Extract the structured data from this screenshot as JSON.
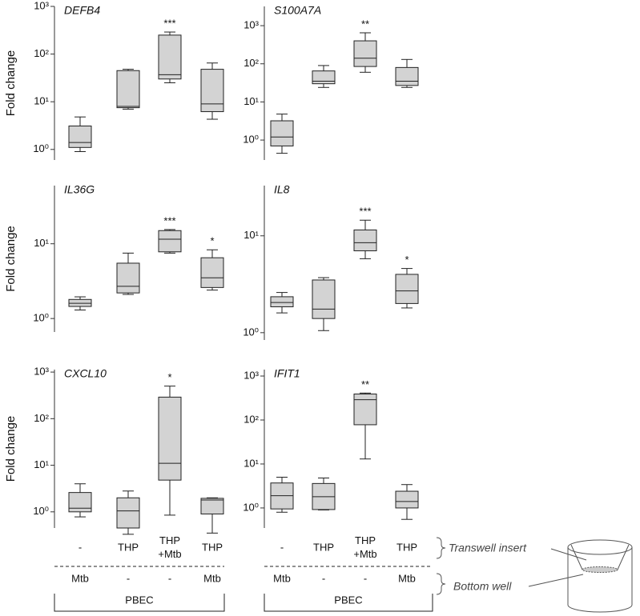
{
  "chart_data": [
    {
      "type": "box",
      "title": "DEFB4",
      "y_label": "Fold change",
      "log_scale": true,
      "color": "#d3d3d3",
      "ylim": [
        0.6,
        1000
      ],
      "yticks": [
        {
          "value": 1,
          "label": "10⁰"
        },
        {
          "value": 10,
          "label": "10¹"
        },
        {
          "value": 100,
          "label": "10²"
        },
        {
          "value": 1000,
          "label": "10³"
        }
      ],
      "whislo": [
        0.9,
        7,
        25,
        4.3
      ],
      "q1": [
        1.1,
        7.5,
        30,
        6.2
      ],
      "median": [
        1.4,
        8,
        37,
        9
      ],
      "q3": [
        3.1,
        45,
        250,
        48
      ],
      "whishi": [
        4.8,
        48,
        290,
        65
      ],
      "annotations": [
        null,
        null,
        "***",
        null
      ]
    },
    {
      "type": "box",
      "title": "S100A7A",
      "log_scale": true,
      "color": "#d3d3d3",
      "ylim": [
        0.3,
        3200
      ],
      "yticks": [
        {
          "value": 1,
          "label": "10⁰"
        },
        {
          "value": 10,
          "label": "10¹"
        },
        {
          "value": 100,
          "label": "10²"
        },
        {
          "value": 1000,
          "label": "10³"
        }
      ],
      "whislo": [
        0.45,
        24,
        60,
        24
      ],
      "q1": [
        0.7,
        30,
        85,
        27
      ],
      "median": [
        1.2,
        35,
        140,
        35
      ],
      "q3": [
        3.2,
        65,
        400,
        80
      ],
      "whishi": [
        4.8,
        90,
        650,
        130
      ],
      "annotations": [
        null,
        null,
        "**",
        null
      ]
    },
    {
      "type": "box",
      "title": "IL36G",
      "y_label": "Fold change",
      "log_scale": true,
      "color": "#d3d3d3",
      "ylim": [
        0.66,
        60
      ],
      "yticks": [
        {
          "value": 1,
          "label": "10⁰"
        },
        {
          "value": 10,
          "label": "10¹"
        }
      ],
      "whislo": [
        1.3,
        2.1,
        7.5,
        2.4
      ],
      "q1": [
        1.45,
        2.2,
        7.8,
        2.6
      ],
      "median": [
        1.6,
        2.7,
        11.5,
        3.5
      ],
      "q3": [
        1.8,
        5.5,
        15,
        6.5
      ],
      "whishi": [
        1.95,
        7.5,
        15.5,
        8.3
      ],
      "annotations": [
        null,
        null,
        "***",
        "*"
      ]
    },
    {
      "type": "box",
      "title": "IL8",
      "log_scale": true,
      "color": "#d3d3d3",
      "ylim": [
        0.84,
        33
      ],
      "yticks": [
        {
          "value": 1,
          "label": "10⁰"
        },
        {
          "value": 10,
          "label": "10¹"
        }
      ],
      "whislo": [
        1.6,
        1.05,
        5.8,
        1.8
      ],
      "q1": [
        1.85,
        1.4,
        7.0,
        2.0
      ],
      "median": [
        2.05,
        1.75,
        8.5,
        2.7
      ],
      "q3": [
        2.35,
        3.5,
        11.5,
        4.0
      ],
      "whishi": [
        2.6,
        3.7,
        14.5,
        4.6
      ],
      "annotations": [
        null,
        null,
        "***",
        "*"
      ]
    },
    {
      "type": "box",
      "title": "CXCL10",
      "y_label": "Fold change",
      "log_scale": true,
      "color": "#d3d3d3",
      "ylim": [
        0.45,
        1130
      ],
      "yticks": [
        {
          "value": 1,
          "label": "10⁰"
        },
        {
          "value": 10,
          "label": "10¹"
        },
        {
          "value": 100,
          "label": "10²"
        },
        {
          "value": 1000,
          "label": "10³"
        }
      ],
      "whislo": [
        0.78,
        0.33,
        0.85,
        0.35
      ],
      "q1": [
        1.0,
        0.45,
        4.8,
        0.9
      ],
      "median": [
        1.2,
        1.05,
        11,
        1.8
      ],
      "q3": [
        2.6,
        2.0,
        290,
        1.95
      ],
      "whishi": [
        4.0,
        2.8,
        500,
        2.0
      ],
      "annotations": [
        null,
        null,
        "*",
        null
      ]
    },
    {
      "type": "box",
      "title": "IFIT1",
      "log_scale": true,
      "color": "#d3d3d3",
      "ylim": [
        0.35,
        1400
      ],
      "yticks": [
        {
          "value": 1,
          "label": "10⁰"
        },
        {
          "value": 10,
          "label": "10¹"
        },
        {
          "value": 100,
          "label": "10²"
        },
        {
          "value": 1000,
          "label": "10³"
        }
      ],
      "whislo": [
        0.8,
        0.9,
        13,
        0.55
      ],
      "q1": [
        0.95,
        0.92,
        78,
        1.0
      ],
      "median": [
        1.9,
        1.8,
        290,
        1.4
      ],
      "q3": [
        3.7,
        3.6,
        390,
        2.4
      ],
      "whishi": [
        5.0,
        4.8,
        410,
        3.4
      ],
      "annotations": [
        null,
        null,
        "**",
        null
      ]
    }
  ],
  "conditions": {
    "insert": [
      "-",
      "THP",
      "THP +Mtb",
      "THP"
    ],
    "bottom": [
      "Mtb",
      "-",
      "-",
      "Mtb"
    ],
    "group": "PBEC"
  },
  "legend": {
    "insert": "Transwell insert",
    "bottom": "Bottom well"
  }
}
